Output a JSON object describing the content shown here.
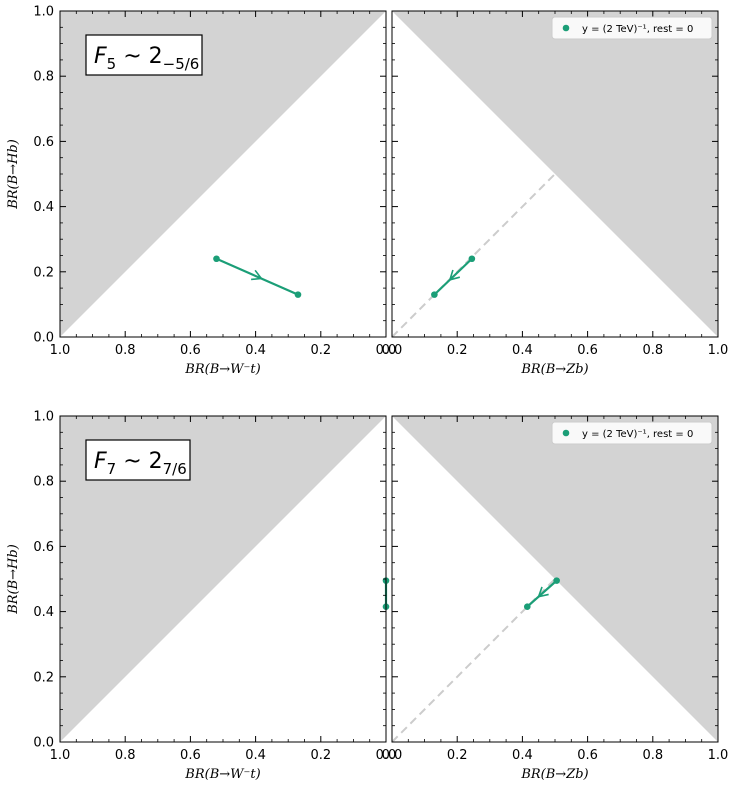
{
  "figure": {
    "colors": {
      "excluded_region": "#d3d3d3",
      "series": "#1b9e77",
      "diagonal": "#cccccc",
      "legend_border": "#cccccc"
    }
  },
  "chart_data": [
    {
      "panel": "top",
      "type": "line",
      "label_main": "F",
      "label_main_sub": "5",
      "label_tilde": " ~ 2",
      "label_rep_sub": "−5/6",
      "left": {
        "xlabel": "BR(B→W⁻t)",
        "ylabel": "BR(B→Hb)",
        "xlim": [
          1.0,
          0.0
        ],
        "ylim": [
          0.0,
          1.0
        ],
        "xticks": [
          "1.0",
          "0.8",
          "0.6",
          "0.4",
          "0.2",
          "0.0"
        ],
        "yticks": [
          "0.0",
          "0.2",
          "0.4",
          "0.6",
          "0.8",
          "1.0"
        ],
        "excluded": "above diagonal BR_Hb > 1 - BR_Wt",
        "series": [
          {
            "x": [
              0.52,
              0.27
            ],
            "y": [
              0.24,
              0.13
            ],
            "arrow": true
          }
        ]
      },
      "right": {
        "xlabel": "BR(B→Zb)",
        "xlim": [
          0.0,
          1.0
        ],
        "ylim": [
          0.0,
          1.0
        ],
        "xticks": [
          "0.0",
          "0.2",
          "0.4",
          "0.6",
          "0.8",
          "1.0"
        ],
        "excluded": "above anti-diagonal BR_Hb > 1 - BR_Zb",
        "diagonal": [
          [
            0.0,
            0.0
          ],
          [
            0.5,
            0.5
          ]
        ],
        "legend": "y = (2 TeV)⁻¹, rest = 0",
        "series": [
          {
            "x": [
              0.245,
              0.13
            ],
            "y": [
              0.24,
              0.13
            ],
            "arrow": true
          }
        ]
      }
    },
    {
      "panel": "bottom",
      "type": "line",
      "label_main": "F",
      "label_main_sub": "7",
      "label_tilde": " ~ 2",
      "label_rep_sub": "7/6",
      "left": {
        "xlabel": "BR(B→W⁻t)",
        "ylabel": "BR(B→Hb)",
        "xlim": [
          1.0,
          0.0
        ],
        "ylim": [
          0.0,
          1.0
        ],
        "xticks": [
          "1.0",
          "0.8",
          "0.6",
          "0.4",
          "0.2",
          "0.0"
        ],
        "yticks": [
          "0.0",
          "0.2",
          "0.4",
          "0.6",
          "0.8",
          "1.0"
        ],
        "excluded": "above diagonal BR_Hb > 1 - BR_Wt",
        "series": [
          {
            "x": [
              0.0,
              0.0
            ],
            "y": [
              0.495,
              0.415
            ],
            "arrow": false
          }
        ]
      },
      "right": {
        "xlabel": "BR(B→Zb)",
        "xlim": [
          0.0,
          1.0
        ],
        "ylim": [
          0.0,
          1.0
        ],
        "xticks": [
          "0.0",
          "0.2",
          "0.4",
          "0.6",
          "0.8",
          "1.0"
        ],
        "excluded": "above anti-diagonal BR_Hb > 1 - BR_Zb",
        "diagonal": [
          [
            0.0,
            0.0
          ],
          [
            0.5,
            0.5
          ]
        ],
        "legend": "y = (2 TeV)⁻¹, rest = 0",
        "series": [
          {
            "x": [
              0.505,
              0.415
            ],
            "y": [
              0.495,
              0.415
            ],
            "arrow": true
          }
        ]
      }
    }
  ]
}
